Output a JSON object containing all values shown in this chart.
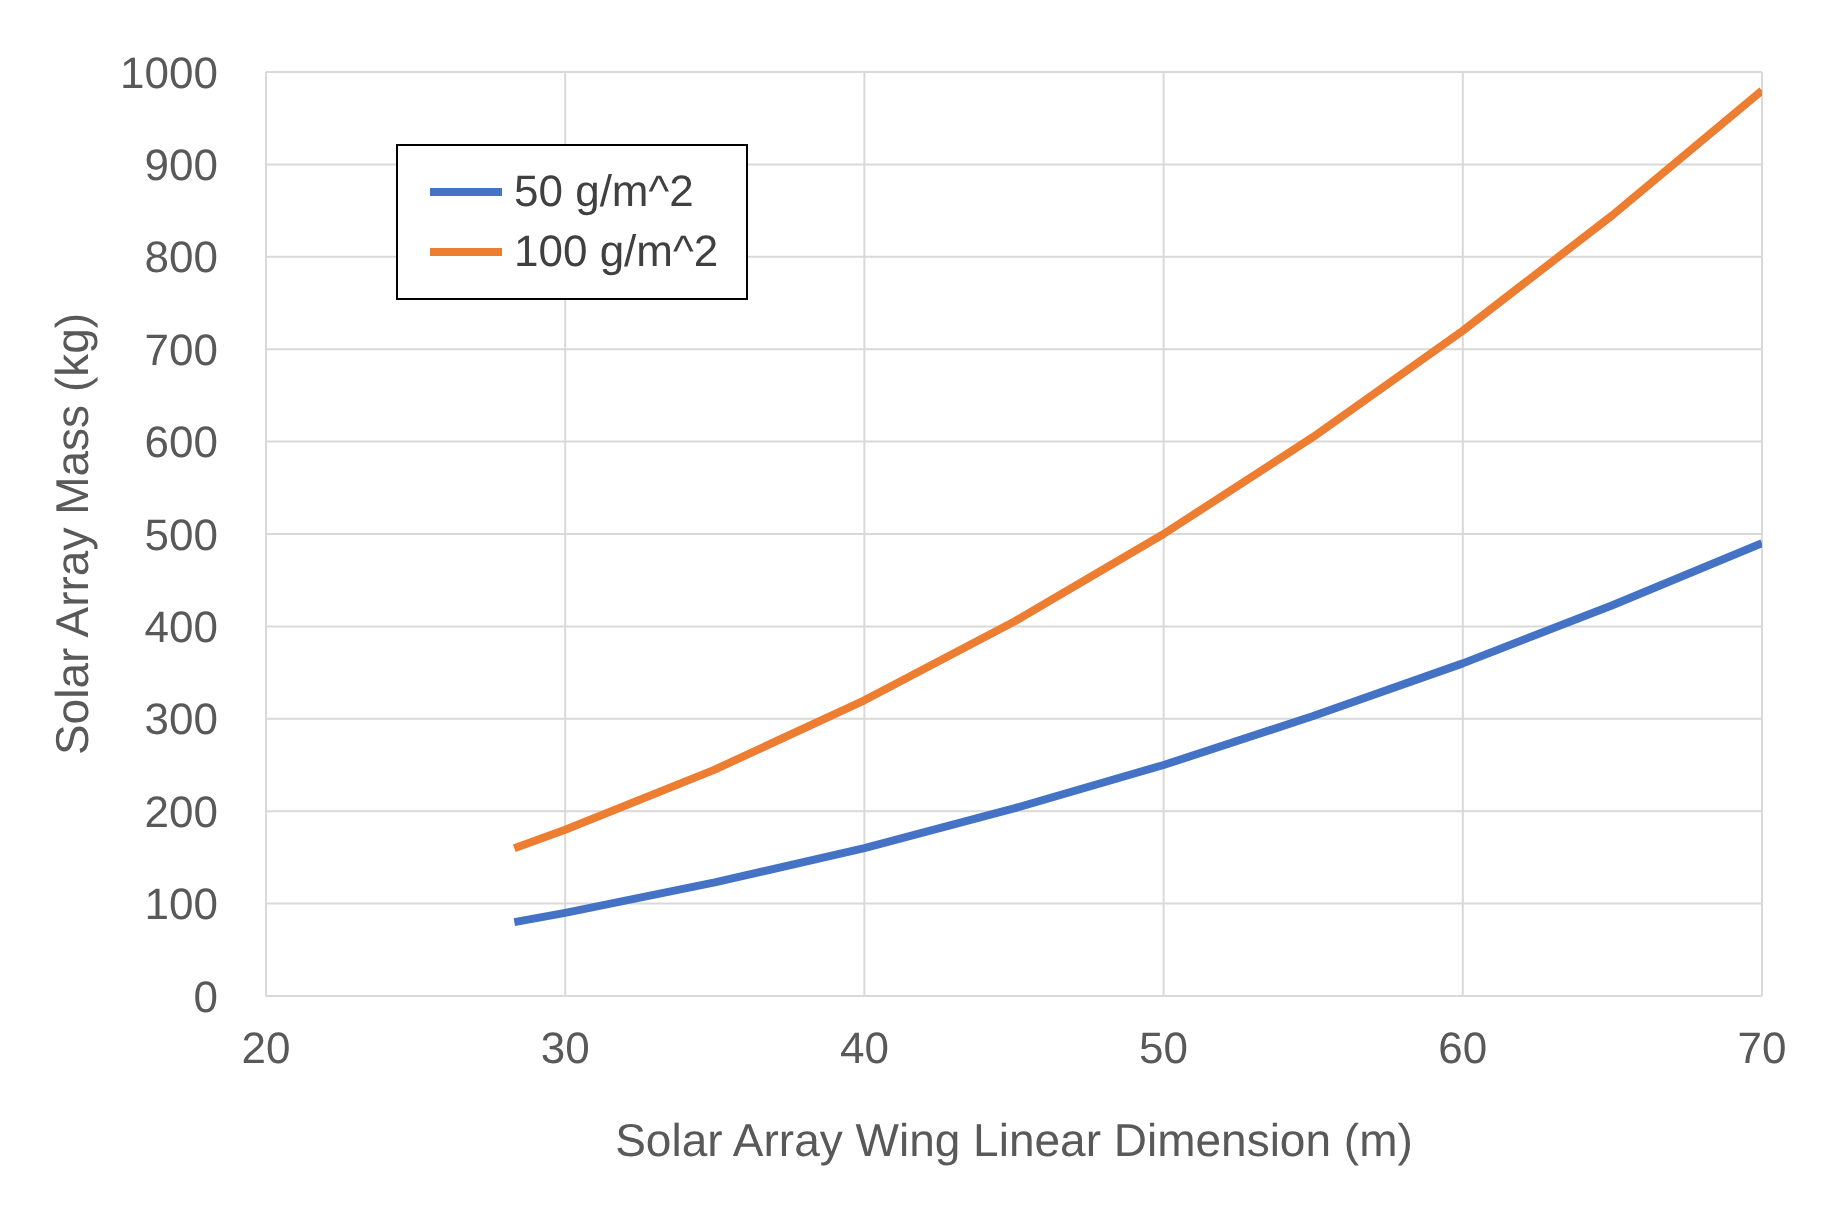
{
  "chart_data": {
    "type": "line",
    "xlabel": "Solar Array Wing Linear Dimension (m)",
    "ylabel": "Solar Array Mass (kg)",
    "x": [
      28.3,
      30,
      35,
      40,
      45,
      50,
      55,
      60,
      65,
      70
    ],
    "series": [
      {
        "name": "50 g/m^2",
        "color": "#4472c4",
        "values": [
          80,
          90,
          123,
          160,
          203,
          250,
          303,
          360,
          423,
          490
        ]
      },
      {
        "name": "100 g/m^2",
        "color": "#ed7d31",
        "values": [
          160,
          180,
          245,
          320,
          405,
          500,
          605,
          720,
          845,
          980
        ]
      }
    ],
    "xlim": [
      20,
      70
    ],
    "xticks": [
      20,
      30,
      40,
      50,
      60,
      70
    ],
    "ylim": [
      0,
      1000
    ],
    "yticks": [
      0,
      100,
      200,
      300,
      400,
      500,
      600,
      700,
      800,
      900,
      1000
    ],
    "grid": true,
    "legend": "top left",
    "marker": "none",
    "line_style": "solid"
  }
}
